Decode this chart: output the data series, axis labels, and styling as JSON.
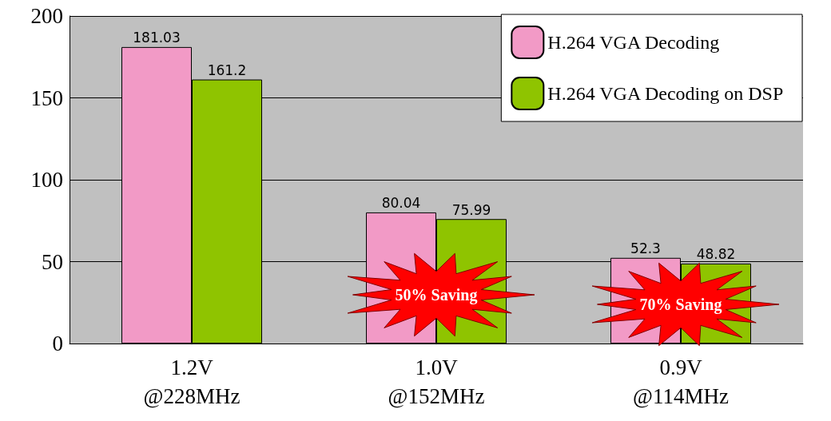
{
  "chart_data": {
    "type": "bar",
    "categories": [
      "1.2V\n@228MHz",
      "1.0V\n@152MHz",
      "0.9V\n@114MHz"
    ],
    "series": [
      {
        "name": "H.264 VGA Decoding",
        "color": "#f29ac6",
        "values": [
          181.03,
          80.04,
          52.3
        ]
      },
      {
        "name": "H.264 VGA Decoding on DSP",
        "color": "#8fc400",
        "values": [
          161.2,
          75.99,
          48.82
        ]
      }
    ],
    "ylim": [
      0,
      200
    ],
    "yticks": [
      0,
      50,
      100,
      150,
      200
    ],
    "grid": "y",
    "legend": "top right",
    "data_labels": true,
    "annotations": [
      {
        "text": "50% Saving",
        "x": "1.0V\n@152MHz",
        "y": 30
      },
      {
        "text": "70% Saving",
        "x": "0.9V\n@114MHz",
        "y": 24
      }
    ]
  }
}
